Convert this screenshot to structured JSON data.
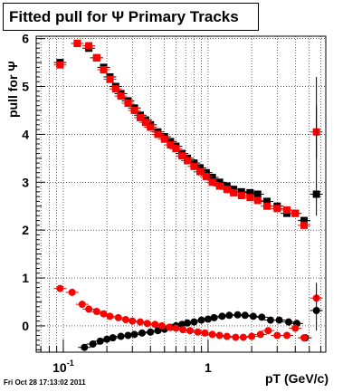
{
  "header": {
    "title": "Fitted pull for  Ψ   Primary Tracks"
  },
  "footer": {
    "timestamp": "Fri Oct 28 17:13:02 2011"
  },
  "chart_data": {
    "type": "scatter",
    "title": "Fitted pull for  Ψ   Primary Tracks",
    "xlabel": "pT (GeV/c)",
    "ylabel": "pull for Ψ",
    "xscale": "log",
    "xlim": [
      0.065,
      6.5
    ],
    "ylim": [
      -0.55,
      6.05
    ],
    "grid": true,
    "x_tick_labels": [
      "10⁻¹",
      "1"
    ],
    "y_tick_labels": [
      "0",
      "1",
      "2",
      "3",
      "4",
      "5",
      "6"
    ],
    "colors": {
      "black": "#000000",
      "red": "#ff0000"
    },
    "series": [
      {
        "color": "black",
        "values": [
          [
            0.095,
            5.5
          ],
          [
            0.125,
            5.9
          ],
          [
            0.15,
            5.8
          ],
          [
            0.17,
            5.6
          ],
          [
            0.19,
            5.4
          ],
          [
            0.21,
            5.2
          ],
          [
            0.23,
            5.0
          ],
          [
            0.25,
            4.85
          ],
          [
            0.28,
            4.7
          ],
          [
            0.31,
            4.55
          ],
          [
            0.34,
            4.4
          ],
          [
            0.37,
            4.3
          ],
          [
            0.4,
            4.2
          ],
          [
            0.45,
            4.05
          ],
          [
            0.5,
            3.95
          ],
          [
            0.55,
            3.85
          ],
          [
            0.6,
            3.75
          ],
          [
            0.66,
            3.6
          ],
          [
            0.72,
            3.5
          ],
          [
            0.8,
            3.4
          ],
          [
            0.88,
            3.3
          ],
          [
            0.97,
            3.2
          ],
          [
            1.07,
            3.1
          ],
          [
            1.2,
            3.0
          ],
          [
            1.35,
            2.92
          ],
          [
            1.5,
            2.85
          ],
          [
            1.7,
            2.8
          ],
          [
            1.95,
            2.78
          ],
          [
            2.2,
            2.75
          ],
          [
            2.55,
            2.6
          ],
          [
            3.0,
            2.5
          ],
          [
            3.5,
            2.35
          ],
          [
            4.0,
            2.35
          ],
          [
            4.6,
            2.2
          ],
          [
            5.6,
            2.75
          ]
        ]
      },
      {
        "color": "red",
        "values": [
          [
            0.095,
            5.45
          ],
          [
            0.125,
            5.9
          ],
          [
            0.15,
            5.85
          ],
          [
            0.17,
            5.6
          ],
          [
            0.19,
            5.35
          ],
          [
            0.21,
            5.15
          ],
          [
            0.23,
            4.95
          ],
          [
            0.25,
            4.8
          ],
          [
            0.28,
            4.65
          ],
          [
            0.31,
            4.5
          ],
          [
            0.34,
            4.35
          ],
          [
            0.37,
            4.25
          ],
          [
            0.4,
            4.15
          ],
          [
            0.45,
            4.0
          ],
          [
            0.5,
            3.9
          ],
          [
            0.55,
            3.78
          ],
          [
            0.6,
            3.7
          ],
          [
            0.66,
            3.55
          ],
          [
            0.72,
            3.45
          ],
          [
            0.8,
            3.33
          ],
          [
            0.88,
            3.22
          ],
          [
            0.97,
            3.12
          ],
          [
            1.07,
            3.0
          ],
          [
            1.2,
            2.92
          ],
          [
            1.35,
            2.85
          ],
          [
            1.5,
            2.78
          ],
          [
            1.7,
            2.72
          ],
          [
            1.95,
            2.68
          ],
          [
            2.2,
            2.62
          ],
          [
            2.55,
            2.5
          ],
          [
            3.0,
            2.45
          ],
          [
            3.5,
            2.42
          ],
          [
            4.0,
            2.35
          ],
          [
            4.6,
            2.1
          ],
          [
            5.6,
            4.05
          ]
        ]
      },
      {
        "color": "black",
        "values": [
          [
            0.14,
            -0.45
          ],
          [
            0.16,
            -0.38
          ],
          [
            0.18,
            -0.32
          ],
          [
            0.2,
            -0.28
          ],
          [
            0.22,
            -0.25
          ],
          [
            0.25,
            -0.22
          ],
          [
            0.28,
            -0.2
          ],
          [
            0.31,
            -0.18
          ],
          [
            0.35,
            -0.15
          ],
          [
            0.4,
            -0.13
          ],
          [
            0.45,
            -0.1
          ],
          [
            0.5,
            -0.07
          ],
          [
            0.55,
            -0.03
          ],
          [
            0.6,
            0.0
          ],
          [
            0.66,
            0.03
          ],
          [
            0.72,
            0.06
          ],
          [
            0.8,
            0.08
          ],
          [
            0.9,
            0.12
          ],
          [
            1.0,
            0.14
          ],
          [
            1.1,
            0.17
          ],
          [
            1.25,
            0.2
          ],
          [
            1.4,
            0.22
          ],
          [
            1.6,
            0.23
          ],
          [
            1.8,
            0.22
          ],
          [
            2.05,
            0.2
          ],
          [
            2.35,
            0.18
          ],
          [
            2.7,
            0.12
          ],
          [
            3.1,
            0.12
          ],
          [
            3.6,
            0.08
          ],
          [
            4.1,
            0.05
          ],
          [
            4.7,
            -0.25
          ],
          [
            5.6,
            0.32
          ]
        ]
      },
      {
        "color": "red",
        "values": [
          [
            0.095,
            0.78
          ],
          [
            0.115,
            0.7
          ],
          [
            0.135,
            0.45
          ],
          [
            0.15,
            0.35
          ],
          [
            0.17,
            0.3
          ],
          [
            0.19,
            0.25
          ],
          [
            0.21,
            0.2
          ],
          [
            0.24,
            0.17
          ],
          [
            0.27,
            0.13
          ],
          [
            0.3,
            0.1
          ],
          [
            0.34,
            0.08
          ],
          [
            0.38,
            0.05
          ],
          [
            0.43,
            0.03
          ],
          [
            0.48,
            0.0
          ],
          [
            0.54,
            -0.03
          ],
          [
            0.6,
            -0.05
          ],
          [
            0.67,
            -0.08
          ],
          [
            0.75,
            -0.1
          ],
          [
            0.85,
            -0.13
          ],
          [
            0.95,
            -0.15
          ],
          [
            1.07,
            -0.18
          ],
          [
            1.2,
            -0.2
          ],
          [
            1.35,
            -0.22
          ],
          [
            1.55,
            -0.24
          ],
          [
            1.75,
            -0.24
          ],
          [
            2.0,
            -0.22
          ],
          [
            2.3,
            -0.18
          ],
          [
            2.6,
            -0.1
          ],
          [
            3.0,
            -0.2
          ],
          [
            3.5,
            -0.2
          ],
          [
            4.0,
            -0.05
          ],
          [
            4.6,
            -0.25
          ],
          [
            5.6,
            0.58
          ]
        ]
      }
    ]
  }
}
